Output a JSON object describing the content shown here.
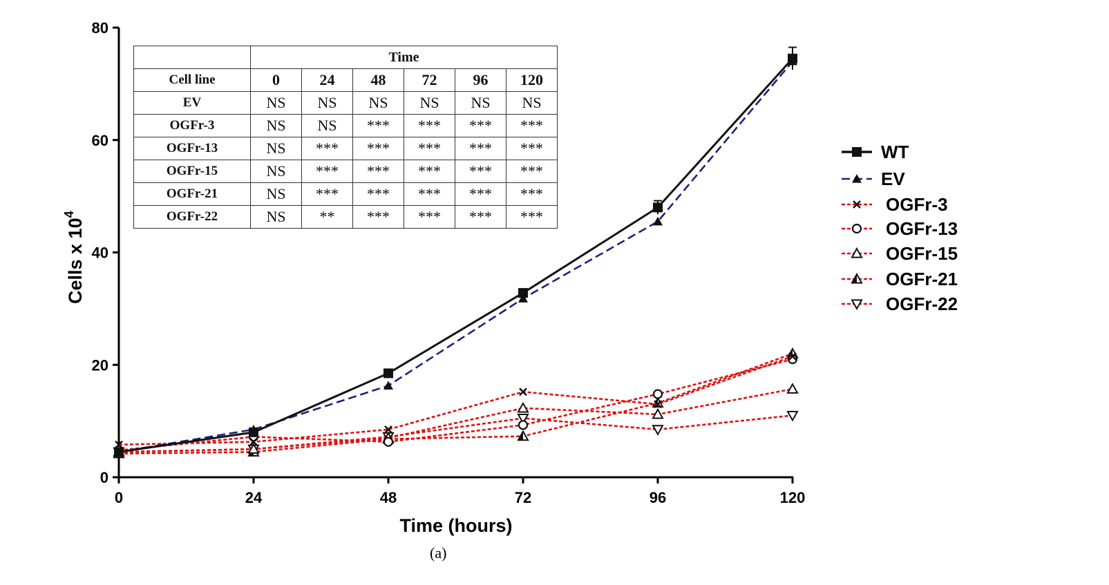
{
  "chart_data": {
    "type": "line",
    "xlabel": "Time (hours)",
    "ylabel": "Cells x 10",
    "ylabel_superscript": "4",
    "x": [
      0,
      24,
      48,
      72,
      96,
      120
    ],
    "xticks": [
      "0",
      "24",
      "48",
      "72",
      "96",
      "120"
    ],
    "yticks": [
      "0",
      "20",
      "40",
      "60",
      "80"
    ],
    "xlim": [
      0,
      120
    ],
    "ylim": [
      0,
      80
    ],
    "grid": false,
    "legend_placement": "right",
    "series": [
      {
        "name": "WT",
        "values": [
          4.5,
          8.0,
          18.5,
          32.8,
          48.0,
          74.5
        ],
        "err": [
          0.3,
          0.4,
          0.5,
          0.6,
          1.2,
          2.0
        ],
        "color": "#111111",
        "dash": "solid",
        "marker": "square-filled"
      },
      {
        "name": "EV",
        "values": [
          4.5,
          8.5,
          16.3,
          31.8,
          45.5,
          74.0
        ],
        "color": "#1a237e",
        "dash": "dashed",
        "marker": "triangle-filled"
      },
      {
        "name": "OGFr-3",
        "values": [
          5.8,
          6.3,
          8.5,
          15.2,
          13.0,
          21.5
        ],
        "color": "#e01010",
        "dash": "dotted",
        "marker": "x"
      },
      {
        "name": "OGFr-13",
        "values": [
          4.8,
          7.2,
          6.3,
          9.3,
          14.8,
          21.0
        ],
        "color": "#e01010",
        "dash": "dotted",
        "marker": "circle-open"
      },
      {
        "name": "OGFr-15",
        "values": [
          4.5,
          5.0,
          7.0,
          12.3,
          11.2,
          15.7
        ],
        "color": "#e01010",
        "dash": "dotted",
        "marker": "triangle-open"
      },
      {
        "name": "OGFr-21",
        "values": [
          4.2,
          4.5,
          6.8,
          7.3,
          13.2,
          22.0
        ],
        "color": "#e01010",
        "dash": "dotted",
        "marker": "triangle-half"
      },
      {
        "name": "OGFr-22",
        "values": [
          4.5,
          5.0,
          7.2,
          10.5,
          8.5,
          11.0
        ],
        "color": "#e01010",
        "dash": "dotted",
        "marker": "triangle-down-open"
      }
    ]
  },
  "table": {
    "group_header": "Time",
    "row_header_label": "Cell line",
    "columns": [
      "0",
      "24",
      "48",
      "72",
      "96",
      "120"
    ],
    "rows": [
      {
        "label": "EV",
        "cells": [
          "NS",
          "NS",
          "NS",
          "NS",
          "NS",
          "NS"
        ]
      },
      {
        "label": "OGFr-3",
        "cells": [
          "NS",
          "NS",
          "***",
          "***",
          "***",
          "***"
        ]
      },
      {
        "label": "OGFr-13",
        "cells": [
          "NS",
          "***",
          "***",
          "***",
          "***",
          "***"
        ]
      },
      {
        "label": "OGFr-15",
        "cells": [
          "NS",
          "***",
          "***",
          "***",
          "***",
          "***"
        ]
      },
      {
        "label": "OGFr-21",
        "cells": [
          "NS",
          "***",
          "***",
          "***",
          "***",
          "***"
        ]
      },
      {
        "label": "OGFr-22",
        "cells": [
          "NS",
          "**",
          "***",
          "***",
          "***",
          "***"
        ]
      }
    ]
  },
  "caption": "(a)"
}
